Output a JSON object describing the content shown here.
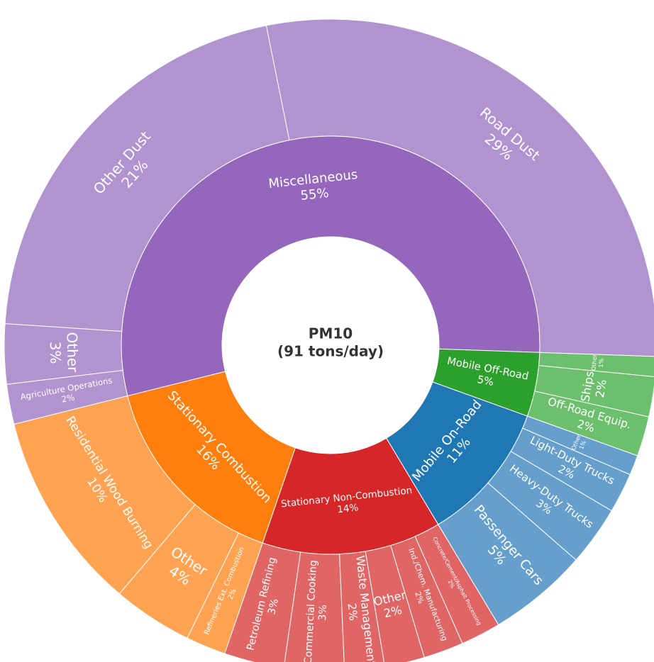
{
  "chart_data": {
    "type": "sunburst",
    "title": "PM10",
    "subtitle": "(91 tons/day)",
    "series": [
      {
        "name": "Miscellaneous",
        "color": "#9467bd",
        "child_color": "#b093cf",
        "value": 55,
        "value_label": "55%",
        "children": [
          {
            "name": "Road Dust",
            "value": 29,
            "value_label": "29%"
          },
          {
            "name": "Other Dust",
            "value": 21,
            "value_label": "21%"
          },
          {
            "name": "Other",
            "value": 3,
            "value_label": "3%"
          },
          {
            "name": "Agriculture Operations",
            "value": 2,
            "value_label": "2%"
          }
        ]
      },
      {
        "name": "Stationary Combustion",
        "color": "#ff7f0e",
        "child_color": "#ffa352",
        "value": 16,
        "value_label": "16%",
        "children": [
          {
            "name": "Residential Wood Burning",
            "value": 10,
            "value_label": "10%"
          },
          {
            "name": "Other",
            "value": 4,
            "value_label": "4%"
          },
          {
            "name": "Refineries Ext. Combustion",
            "value": 2,
            "value_label": "2%"
          }
        ]
      },
      {
        "name": "Stationary Non-Combustion",
        "color": "#d62728",
        "child_color": "#e06666",
        "value": 14,
        "value_label": "14%",
        "children": [
          {
            "name": "Petroleum Refining",
            "value": 3,
            "value_label": "3%"
          },
          {
            "name": "Commercial Cooking",
            "value": 3,
            "value_label": "3%"
          },
          {
            "name": "Waste Management",
            "value": 2,
            "value_label": "2%"
          },
          {
            "name": "Other",
            "value": 2,
            "value_label": "2%"
          },
          {
            "name": "Ind./Chem. Manufacturing",
            "value": 2,
            "value_label": "2%"
          },
          {
            "name": "Concrete/Cement/Asphalt Processing",
            "value": 2,
            "value_label": "2%"
          }
        ]
      },
      {
        "name": "Mobile On-Road",
        "color": "#1f77b4",
        "child_color": "#669fcc",
        "value": 11,
        "value_label": "11%",
        "children": [
          {
            "name": "Passenger Cars",
            "value": 5,
            "value_label": "5%"
          },
          {
            "name": "Heavy-Duty Trucks",
            "value": 3,
            "value_label": "3%"
          },
          {
            "name": "Light-Duty Trucks",
            "value": 2,
            "value_label": "2%"
          },
          {
            "name": "Other",
            "value": 1,
            "value_label": "1%"
          }
        ]
      },
      {
        "name": "Mobile Off-Road",
        "color": "#2ca02c",
        "child_color": "#6cbf6c",
        "value": 5,
        "value_label": "5%",
        "children": [
          {
            "name": "Off-Road Equip.",
            "value": 2,
            "value_label": "2%"
          },
          {
            "name": "Ships",
            "value": 2,
            "value_label": "2%"
          },
          {
            "name": "Other",
            "value": 1,
            "value_label": "1%"
          }
        ]
      }
    ]
  }
}
